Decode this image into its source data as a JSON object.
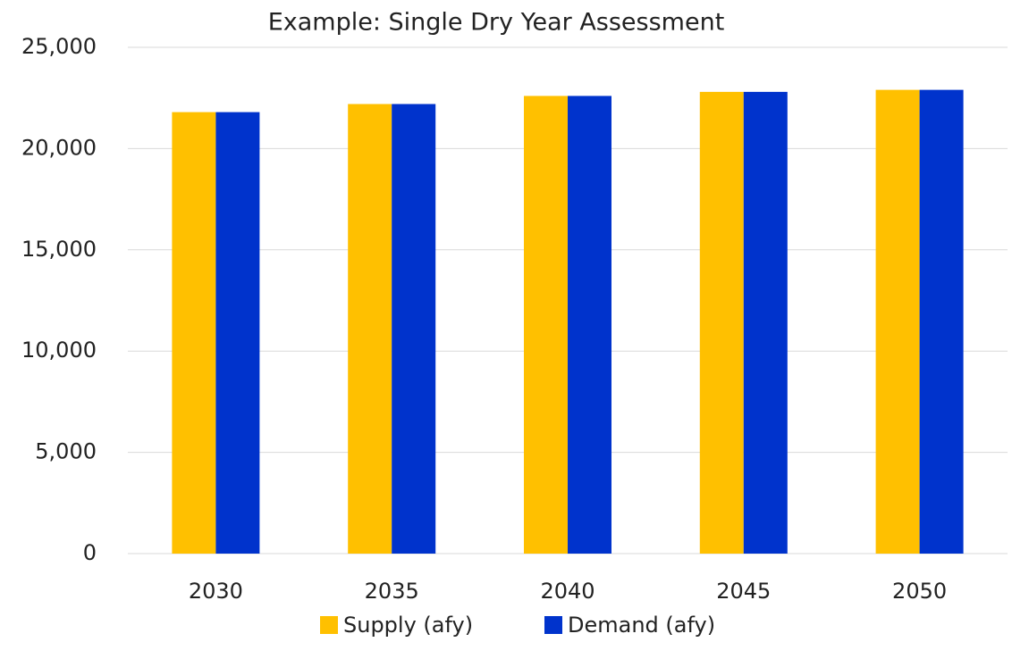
{
  "chart_data": {
    "type": "bar",
    "title": "Example: Single Dry Year Assessment",
    "categories": [
      "2030",
      "2035",
      "2040",
      "2045",
      "2050"
    ],
    "series": [
      {
        "name": "Supply (afy)",
        "color": "#FFC000",
        "values": [
          21800,
          22200,
          22600,
          22800,
          22900
        ]
      },
      {
        "name": "Demand (afy)",
        "color": "#0033CC",
        "values": [
          21800,
          22200,
          22600,
          22800,
          22900
        ]
      }
    ],
    "ylim": [
      0,
      25000
    ],
    "yticks": [
      0,
      {
        "value": 5000,
        "label": "5,000"
      },
      {
        "value": 10000,
        "label": "10,000"
      },
      {
        "value": 15000,
        "label": "15,000"
      },
      {
        "value": 20000,
        "label": "20,000"
      },
      {
        "value": 25000,
        "label": "25,000"
      }
    ],
    "grid": true,
    "legend": "bottom"
  }
}
